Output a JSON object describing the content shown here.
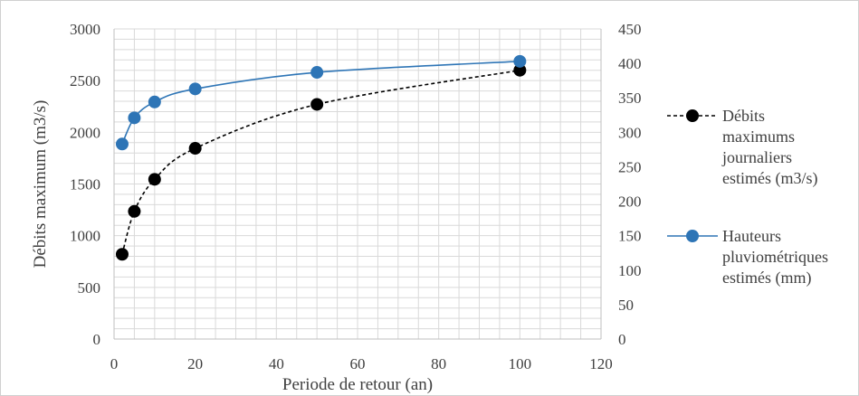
{
  "chart_data": {
    "type": "line",
    "xlabel": "Periode de retour (an)",
    "ylabel": "Débits maximum (m3/s)",
    "y2label": "",
    "xlim": [
      0,
      120
    ],
    "ylim": [
      0,
      3000
    ],
    "y2lim": [
      0,
      450
    ],
    "x_ticks": [
      "0",
      "20",
      "40",
      "60",
      "80",
      "100",
      "120"
    ],
    "y_ticks": [
      "0",
      "500",
      "1000",
      "1500",
      "2000",
      "2500",
      "3000"
    ],
    "y2_ticks": [
      "0",
      "50",
      "100",
      "150",
      "200",
      "250",
      "300",
      "350",
      "400",
      "450"
    ],
    "grid": true,
    "legend_position": "right",
    "series": [
      {
        "name": "Débits maximums journaliers estimés (m3/s)",
        "axis": "left",
        "color": "#000000",
        "line_style": "dashed",
        "x": [
          2,
          5,
          10,
          20,
          50,
          100
        ],
        "values": [
          820,
          1235,
          1545,
          1845,
          2270,
          2600
        ]
      },
      {
        "name": "Hauteurs pluviométriques estimés (mm)",
        "axis": "right",
        "color": "#2e75b6",
        "line_style": "solid",
        "x": [
          2,
          5,
          10,
          20,
          50,
          100
        ],
        "values": [
          283,
          321,
          344,
          363,
          387,
          403
        ]
      }
    ],
    "legend": [
      {
        "lines": [
          "Débits",
          "maximums",
          "journaliers",
          "estimés (m3/s)"
        ]
      },
      {
        "lines": [
          "Hauteurs",
          "pluviométriques",
          "estimés (mm)"
        ]
      }
    ]
  }
}
